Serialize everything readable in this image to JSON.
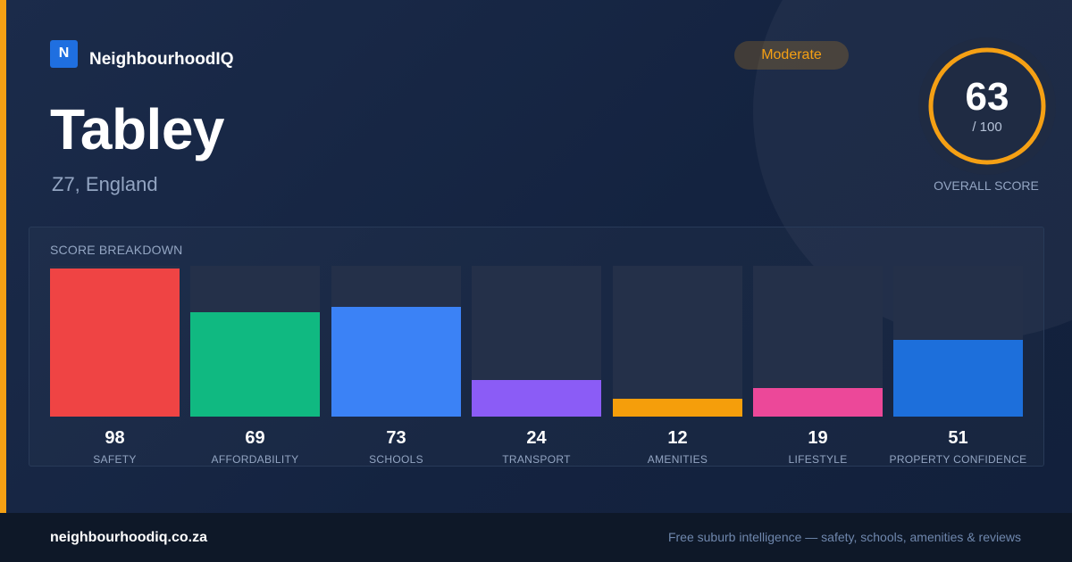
{
  "brand": {
    "logo_letter": "N",
    "name": "NeighbourhoodIQ"
  },
  "suburb": {
    "name": "Tabley",
    "location": "Z7, England"
  },
  "rating": {
    "label": "Moderate"
  },
  "overall": {
    "score": "63",
    "max": "/ 100",
    "label": "OVERALL SCORE",
    "fraction": 0.63
  },
  "colors": {
    "accent": "#f5a014",
    "safety": "#ef4444",
    "affordability": "#10b981",
    "schools": "#3b82f6",
    "transport": "#8b5cf6",
    "amenities": "#f59e0b",
    "lifestyle": "#ec4899",
    "property_confidence": "#1d6fdb"
  },
  "breakdown": {
    "title": "SCORE BREAKDOWN",
    "max": 100,
    "items": [
      {
        "label": "SAFETY",
        "value": 98,
        "color": "#ef4444"
      },
      {
        "label": "AFFORDABILITY",
        "value": 69,
        "color": "#10b981"
      },
      {
        "label": "SCHOOLS",
        "value": 73,
        "color": "#3b82f6"
      },
      {
        "label": "TRANSPORT",
        "value": 24,
        "color": "#8b5cf6"
      },
      {
        "label": "AMENITIES",
        "value": 12,
        "color": "#f59e0b"
      },
      {
        "label": "LIFESTYLE",
        "value": 19,
        "color": "#ec4899"
      },
      {
        "label": "PROPERTY CONFIDENCE",
        "value": 51,
        "color": "#1d6fdb"
      }
    ]
  },
  "footer": {
    "url": "neighbourhoodiq.co.za",
    "tagline": "Free suburb intelligence — safety, schools, amenities & reviews"
  }
}
